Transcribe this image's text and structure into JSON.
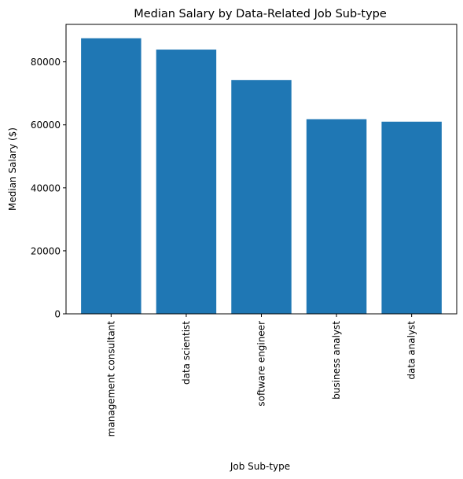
{
  "chart_data": {
    "type": "bar",
    "title": "Median Salary by Data-Related Job Sub-type",
    "xlabel": "Job Sub-type",
    "ylabel": "Median Salary ($)",
    "categories": [
      "management consultant",
      "data scientist",
      "software engineer",
      "business analyst",
      "data analyst"
    ],
    "values": [
      87500,
      83900,
      74200,
      61800,
      61000
    ],
    "ylim": [
      0,
      91900
    ],
    "yticks": [
      0,
      20000,
      40000,
      60000,
      80000
    ],
    "ytick_labels": [
      "0",
      "20000",
      "40000",
      "60000",
      "80000"
    ],
    "x_tick_rotation": "vertical",
    "bar_color": "#1f77b4",
    "grid": false,
    "legend": "none"
  }
}
